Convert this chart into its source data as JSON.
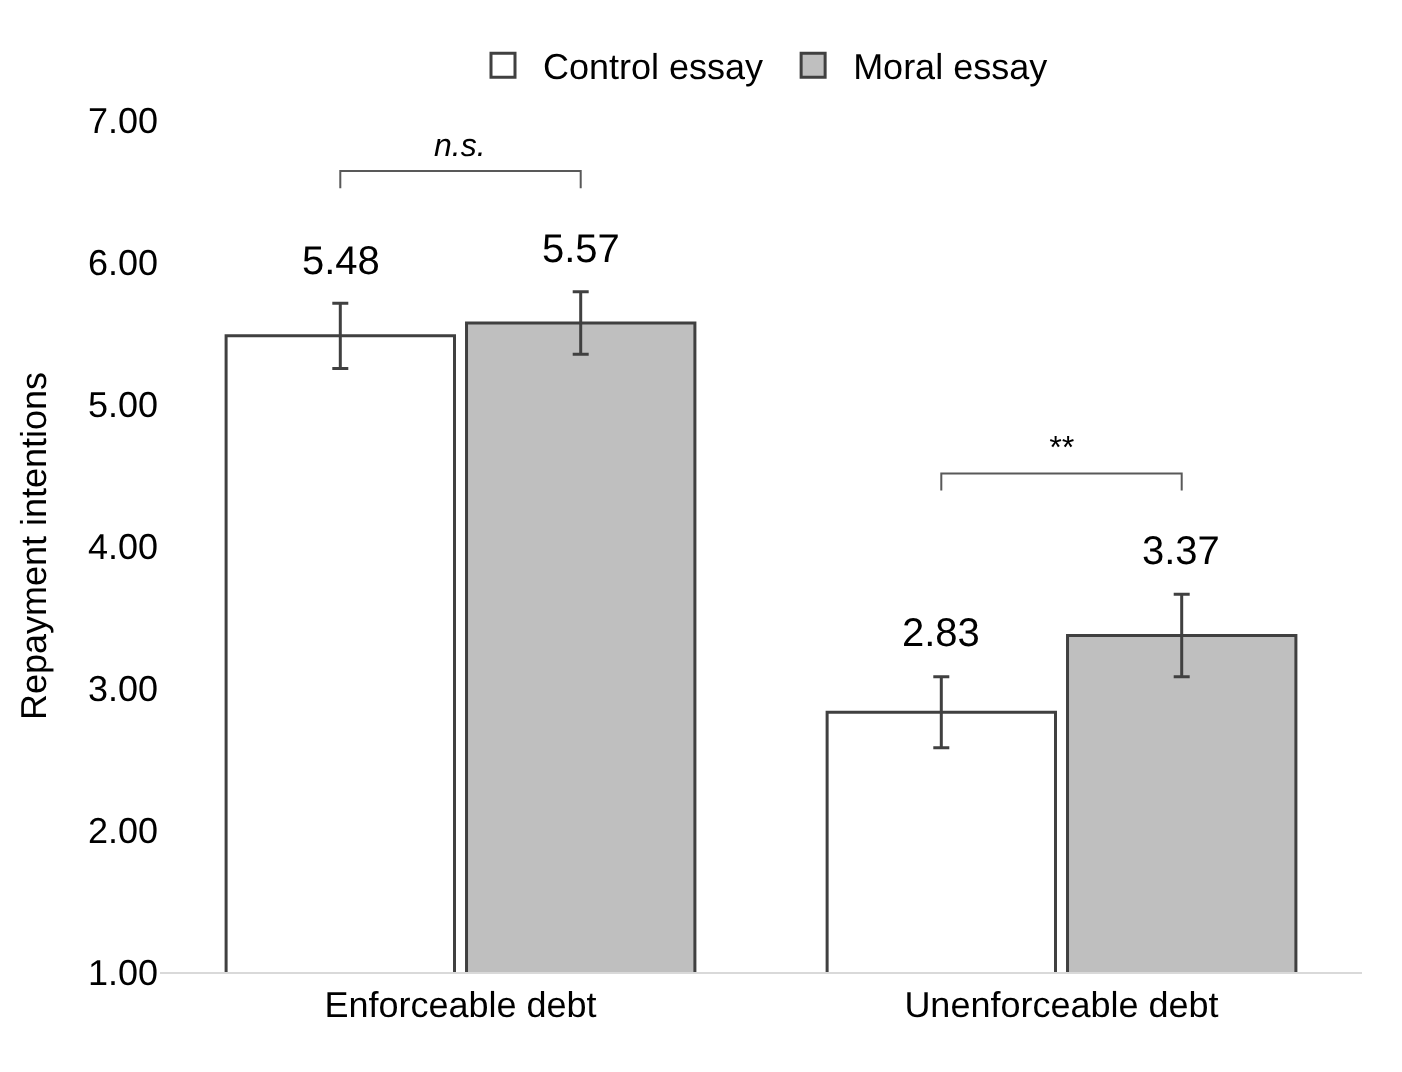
{
  "chart_data": {
    "type": "bar",
    "ylabel": "Repayment intentions",
    "categories": [
      "Enforceable debt",
      "Unenforceable debt"
    ],
    "series": [
      {
        "name": "Control essay",
        "color": "#ffffff",
        "values": [
          5.48,
          2.83
        ],
        "errors": [
          0.23,
          0.25
        ]
      },
      {
        "name": "Moral essay",
        "color": "#bfbfbf",
        "values": [
          5.57,
          3.37
        ],
        "errors": [
          0.22,
          0.29
        ]
      }
    ],
    "data_labels": true,
    "ylim": [
      1,
      7
    ],
    "yticks": [
      {
        "value": 1,
        "label": "1.00"
      },
      {
        "value": 2,
        "label": "2.00"
      },
      {
        "value": 3,
        "label": "3.00"
      },
      {
        "value": 4,
        "label": "4.00"
      },
      {
        "value": 5,
        "label": "5.00"
      },
      {
        "value": 6,
        "label": "6.00"
      },
      {
        "value": 7,
        "label": "7.00"
      }
    ],
    "grid": false,
    "legend": "top",
    "annotations": [
      "n.s.",
      "**"
    ]
  }
}
